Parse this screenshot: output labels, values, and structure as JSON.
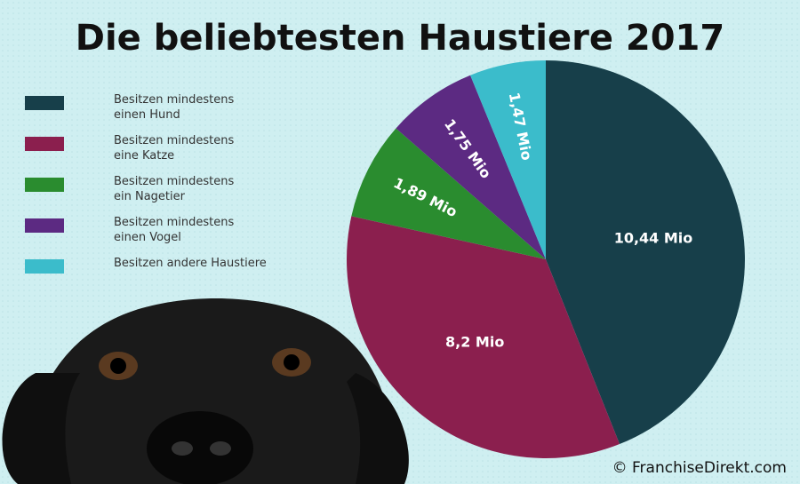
{
  "chart_data": {
    "type": "pie",
    "title": "Die beliebtesten Haustiere 2017",
    "categories": [
      "Besitzen mindestens\neinen Hund",
      "Besitzen mindestens\neine Katze",
      "Besitzen mindestens\nein Nagetier",
      "Besitzen mindestens\neinen Vogel",
      "Besitzen andere Haustiere"
    ],
    "values": [
      10.44,
      8.2,
      1.89,
      1.75,
      1.47
    ],
    "value_labels": [
      "10,44 Mio",
      "8,2 Mio",
      "1,89 Mio",
      "1,75 Mio",
      "1,47 Mio"
    ],
    "colors": [
      "#173f4a",
      "#8b1f4e",
      "#2a8c2f",
      "#5c2a82",
      "#3bbccb"
    ],
    "legend": "upper left",
    "source": "© FranchiseDirekt.com"
  }
}
